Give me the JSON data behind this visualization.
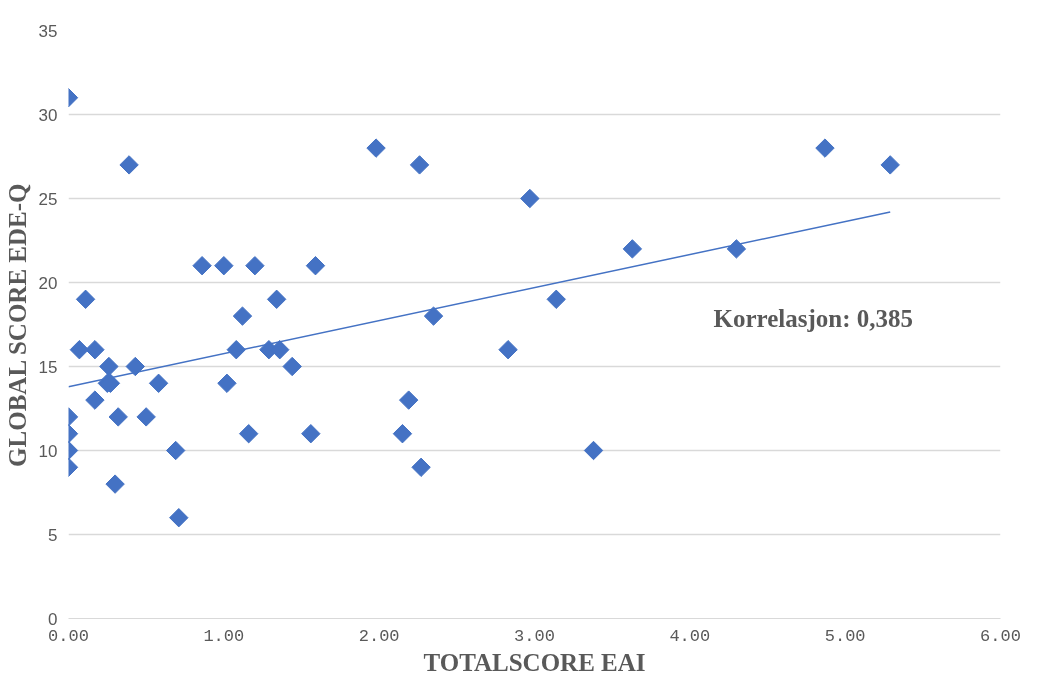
{
  "chart_data": {
    "type": "scatter",
    "xlabel": "TOTALSCORE EAI",
    "ylabel": "GLOBAL SCORE EDE-Q",
    "marker": "diamond",
    "grid": "y",
    "xlim": [
      0,
      6
    ],
    "ylim": [
      0,
      35
    ],
    "xticks": [
      {
        "value": 0,
        "label": "0.00"
      },
      {
        "value": 1,
        "label": "1.00"
      },
      {
        "value": 2,
        "label": "2.00"
      },
      {
        "value": 3,
        "label": "3.00"
      },
      {
        "value": 4,
        "label": "4.00"
      },
      {
        "value": 5,
        "label": "5.00"
      },
      {
        "value": 6,
        "label": "6.00"
      }
    ],
    "yticks": [
      0,
      5,
      10,
      15,
      20,
      25,
      30,
      35
    ],
    "annotations": [
      "Korrelasjon: 0,385"
    ],
    "series": [
      {
        "color": "#4472c4",
        "x": [
          0.0,
          0.39,
          1.98,
          2.26,
          2.97,
          4.87,
          5.29,
          0.86,
          1.0,
          1.2,
          1.59,
          3.63,
          4.3,
          0.11,
          1.34,
          3.14,
          1.12,
          2.35,
          0.07,
          0.17,
          1.08,
          1.29,
          1.36,
          2.83,
          0.26,
          0.43,
          1.44,
          0.25,
          0.27,
          0.58,
          1.02,
          0.17,
          2.19,
          0.0,
          0.32,
          0.5,
          0.0,
          1.16,
          1.56,
          2.15,
          0.0,
          0.69,
          3.38,
          0.0,
          2.27,
          0.3,
          0.71
        ],
        "values": [
          31,
          27,
          28,
          27,
          25,
          28,
          27,
          21,
          21,
          21,
          21,
          22,
          22,
          19,
          19,
          19,
          18,
          18,
          16,
          16,
          16,
          16,
          16,
          16,
          15,
          15,
          15,
          14,
          14,
          14,
          14,
          13,
          13,
          12,
          12,
          12,
          11,
          11,
          11,
          11,
          10,
          10,
          10,
          9,
          9,
          8,
          6
        ]
      },
      {
        "type": "line",
        "marker": "none",
        "color": "#4472c4",
        "x": [
          0.0,
          5.29
        ],
        "values": [
          13.8,
          24.2
        ]
      }
    ]
  }
}
